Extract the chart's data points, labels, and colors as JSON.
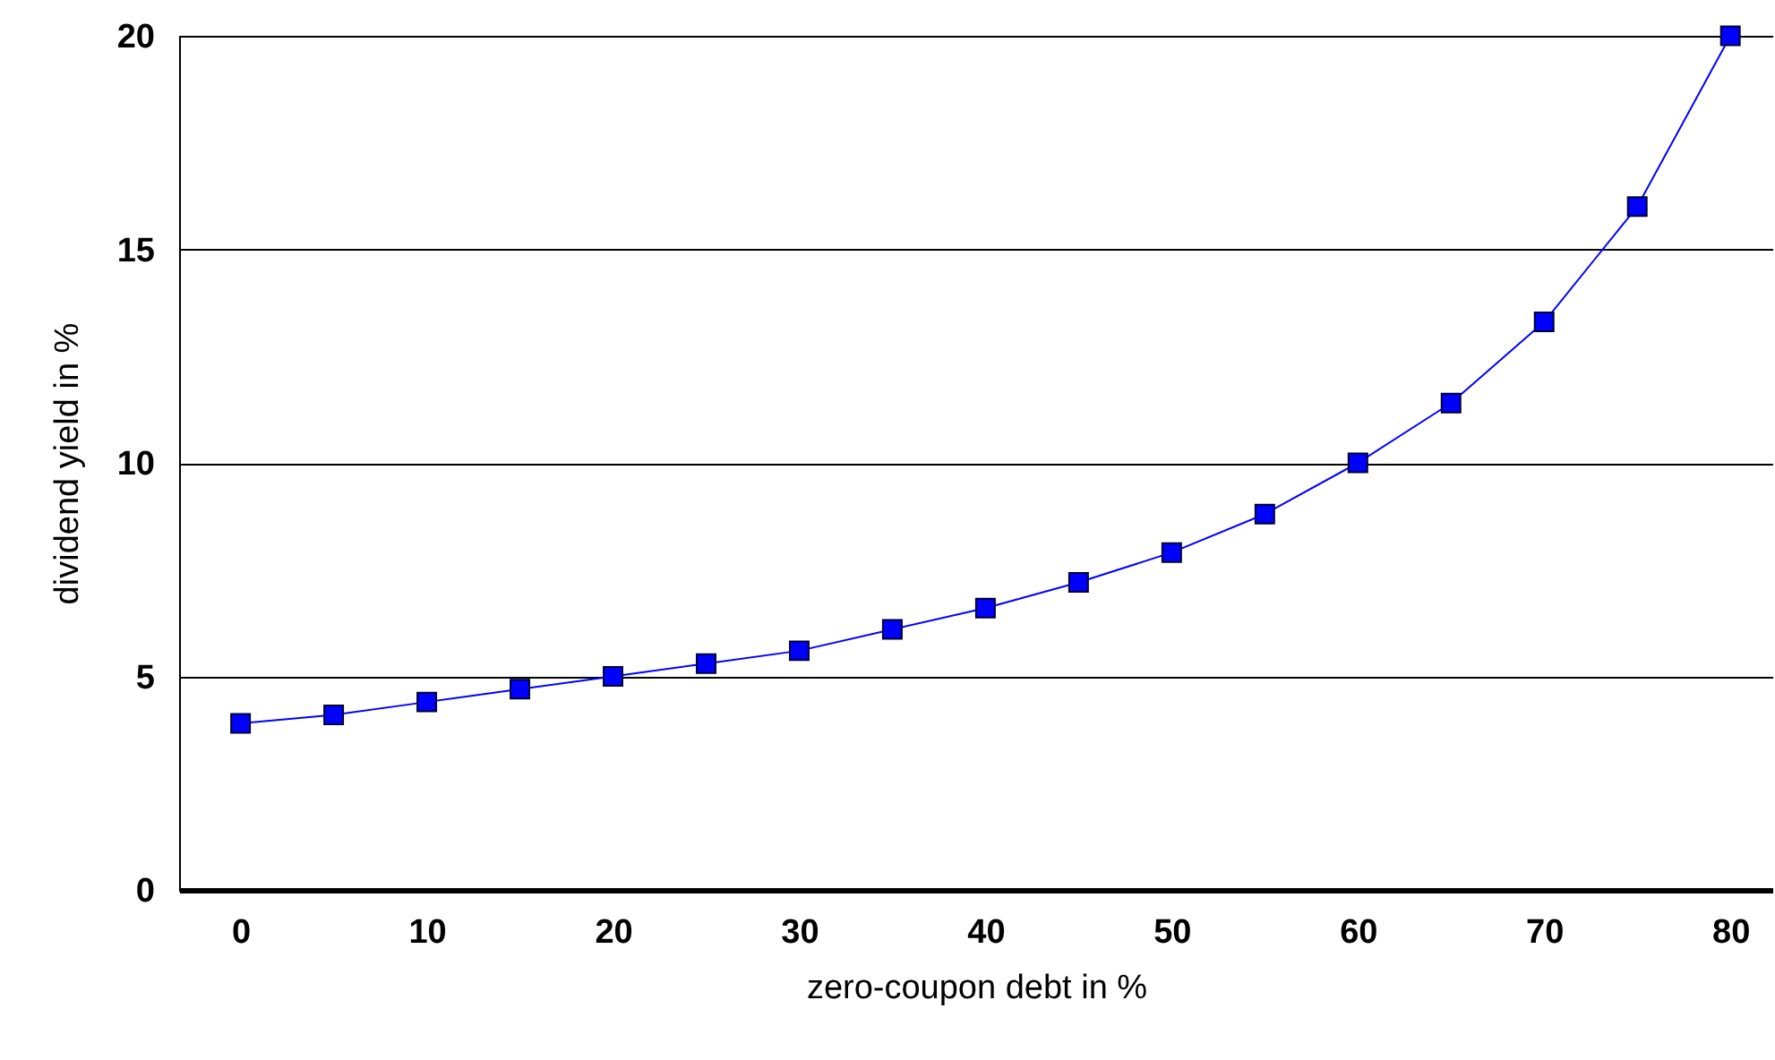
{
  "chart_data": {
    "type": "line",
    "xlabel": "zero-coupon debt in %",
    "ylabel": "dividend yield in %",
    "x": [
      0,
      5,
      10,
      15,
      20,
      25,
      30,
      35,
      40,
      45,
      50,
      55,
      60,
      65,
      70,
      75,
      80
    ],
    "series": [
      {
        "color": "#0000ff",
        "values": [
          3.9,
          4.1,
          4.4,
          4.7,
          5.0,
          5.3,
          5.6,
          6.1,
          6.6,
          7.2,
          7.9,
          8.8,
          10.0,
          11.4,
          13.3,
          16.0,
          20.0
        ]
      }
    ],
    "xlim": [
      -3.3,
      82.3
    ],
    "xticks": [
      0,
      10,
      20,
      30,
      40,
      50,
      60,
      70,
      80
    ],
    "ylim": [
      0,
      20
    ],
    "yticks": [
      0,
      5,
      10,
      15,
      20
    ],
    "grid": "y",
    "marker": "square",
    "line_style": "solid"
  }
}
